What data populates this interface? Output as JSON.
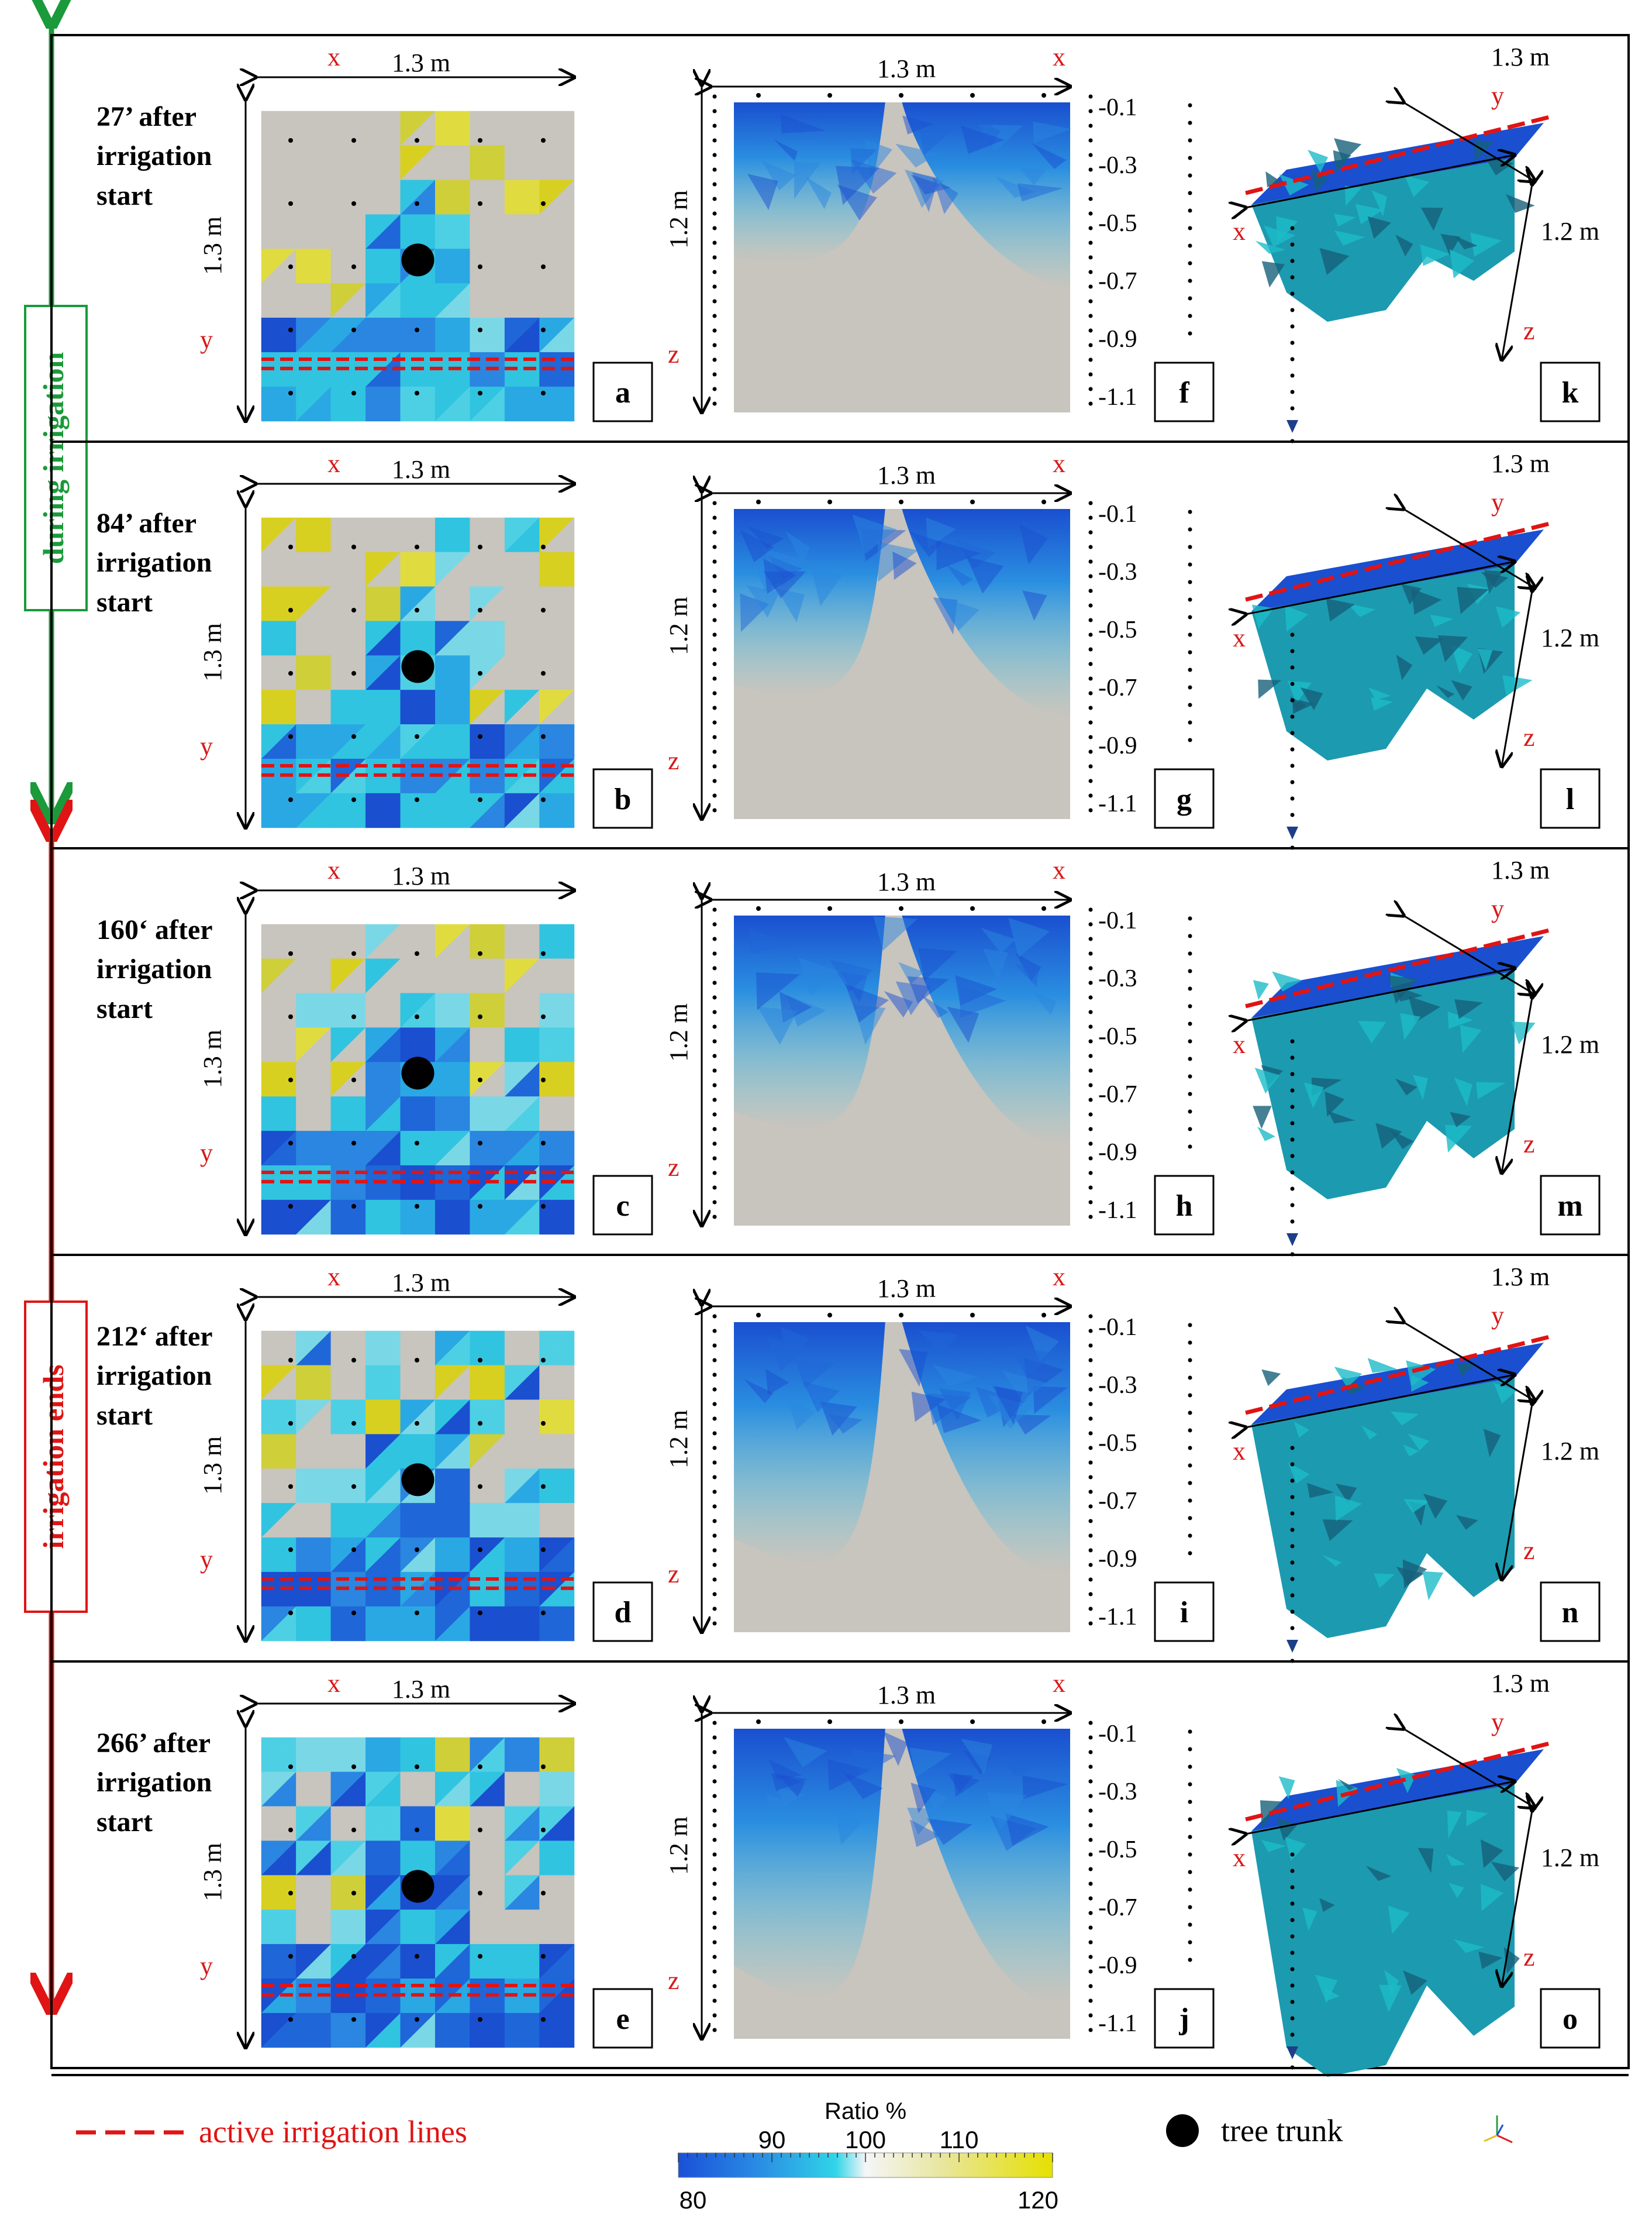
{
  "phases": {
    "during": {
      "label": "during irrigation",
      "color": "#1a9a3a"
    },
    "after": {
      "label": "irrigation ends",
      "color": "#e01414"
    }
  },
  "rows": [
    {
      "time_line1": "27’ after",
      "time_line2": "irrigation",
      "time_line3": "start",
      "panel_plan": "a",
      "panel_profile": "f",
      "panel_3d": "k"
    },
    {
      "time_line1": "84’ after",
      "time_line2": "irrigation",
      "time_line3": "start",
      "panel_plan": "b",
      "panel_profile": "g",
      "panel_3d": "l"
    },
    {
      "time_line1": "160‘ after",
      "time_line2": "irrigation",
      "time_line3": "start",
      "panel_plan": "c",
      "panel_profile": "h",
      "panel_3d": "m"
    },
    {
      "time_line1": "212‘ after",
      "time_line2": "irrigation",
      "time_line3": "start",
      "panel_plan": "d",
      "panel_profile": "i",
      "panel_3d": "n"
    },
    {
      "time_line1": "266’ after",
      "time_line2": "irrigation",
      "time_line3": "start",
      "panel_plan": "e",
      "panel_profile": "j",
      "panel_3d": "o"
    }
  ],
  "axes": {
    "x": "x",
    "y": "y",
    "z": "z",
    "plan_width": "1.3 m",
    "plan_height": "1.3 m",
    "profile_width": "1.3 m",
    "profile_depth": "1.2 m",
    "iso_width": "1.3 m",
    "iso_depth": "1.2 m"
  },
  "depth_ticks": [
    "-0.1",
    "-0.3",
    "-0.5",
    "-0.7",
    "-0.9",
    "-1.1"
  ],
  "legend": {
    "irrigation_lines": "active irrigation lines",
    "tree_trunk": "tree trunk",
    "colorbar_title": "Ratio %",
    "colorbar_min": "80",
    "colorbar_max": "120",
    "colorbar_top_ticks": [
      "90",
      "100",
      "110"
    ],
    "colorbar_range": [
      80,
      120
    ],
    "colorbar_colors": [
      "#1a50d8",
      "#2a8ee4",
      "#30d4e8",
      "#f4f6f8",
      "#e8e6a0",
      "#e6e000"
    ]
  },
  "colors": {
    "background_soil": "#c8c4be",
    "irrigation_line": "#e01414",
    "label_red": "#d81818",
    "deep_blue": "#1a4fd0",
    "cyan": "#2cc6e0",
    "yellow": "#d8d020"
  }
}
